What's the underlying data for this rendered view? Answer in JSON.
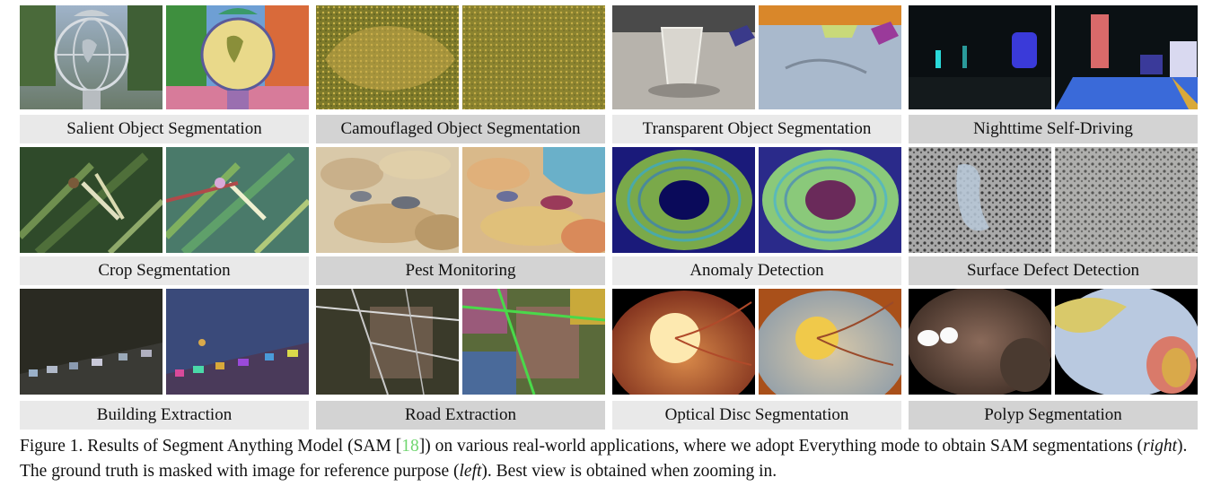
{
  "figure": {
    "cells": [
      {
        "label": "Salient Object Segmentation",
        "left_image": "globe sculpture photo",
        "right_image": "globe sculpture SAM segmentation"
      },
      {
        "label": "Camouflaged Object Segmentation",
        "left_image": "flatfish on sand photo",
        "right_image": "flatfish SAM segmentation"
      },
      {
        "label": "Transparent Object Segmentation",
        "left_image": "glass on table photo",
        "right_image": "glass SAM segmentation"
      },
      {
        "label": "Nighttime Self-Driving",
        "left_image": "night street photo",
        "right_image": "night street SAM segmentation"
      },
      {
        "label": "Crop Segmentation",
        "left_image": "crop with bird photo",
        "right_image": "crop SAM segmentation"
      },
      {
        "label": "Pest Monitoring",
        "left_image": "pests on grain photo",
        "right_image": "pests SAM segmentation"
      },
      {
        "label": "Anomaly Detection",
        "left_image": "ring anomaly photo",
        "right_image": "ring SAM segmentation"
      },
      {
        "label": "Surface Defect Detection",
        "left_image": "textured surface photo",
        "right_image": "surface SAM segmentation"
      },
      {
        "label": "Building Extraction",
        "left_image": "aerial buildings photo",
        "right_image": "buildings SAM segmentation"
      },
      {
        "label": "Road Extraction",
        "left_image": "aerial roads photo",
        "right_image": "roads SAM segmentation"
      },
      {
        "label": "Optical Disc Segmentation",
        "left_image": "retina fundus photo",
        "right_image": "retina SAM segmentation"
      },
      {
        "label": "Polyp Segmentation",
        "left_image": "endoscopy photo",
        "right_image": "endoscopy SAM segmentation"
      }
    ]
  },
  "caption": {
    "part1": "Figure 1. Results of Segment Anything Model (SAM [",
    "cite": "18",
    "part2": "]) on various real-world applications, where we adopt Everything mode to obtain SAM segmentations (",
    "right": "right",
    "part3": "). The ground truth is masked with image for reference purpose (",
    "left": "left",
    "part4": "). Best view is obtained when zooming in."
  },
  "colors": {
    "cite": "#6fd66f",
    "label_light": "#e9e9e9",
    "label_dark": "#d3d3d3"
  }
}
